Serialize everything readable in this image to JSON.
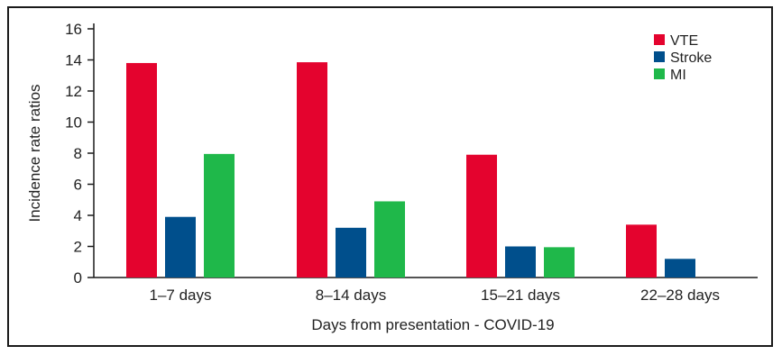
{
  "chart_data": {
    "type": "bar",
    "categories": [
      "1–7 days",
      "8–14 days",
      "15–21 days",
      "22–28 days"
    ],
    "series": [
      {
        "name": "VTE",
        "color": "#e4032e",
        "values": [
          13.8,
          13.85,
          7.9,
          3.4
        ]
      },
      {
        "name": "Stroke",
        "color": "#004f8c",
        "values": [
          3.9,
          3.2,
          2.0,
          1.2
        ]
      },
      {
        "name": "MI",
        "color": "#1fb84a",
        "values": [
          7.95,
          4.9,
          1.95,
          null
        ]
      }
    ],
    "xlabel": "Days from presentation - COVID-19",
    "ylabel": "Incidence rate ratios",
    "ylim": [
      0,
      16
    ],
    "yticks": [
      0,
      2,
      4,
      6,
      8,
      10,
      12,
      14,
      16
    ],
    "legend_position": "top-right",
    "grid": false
  }
}
